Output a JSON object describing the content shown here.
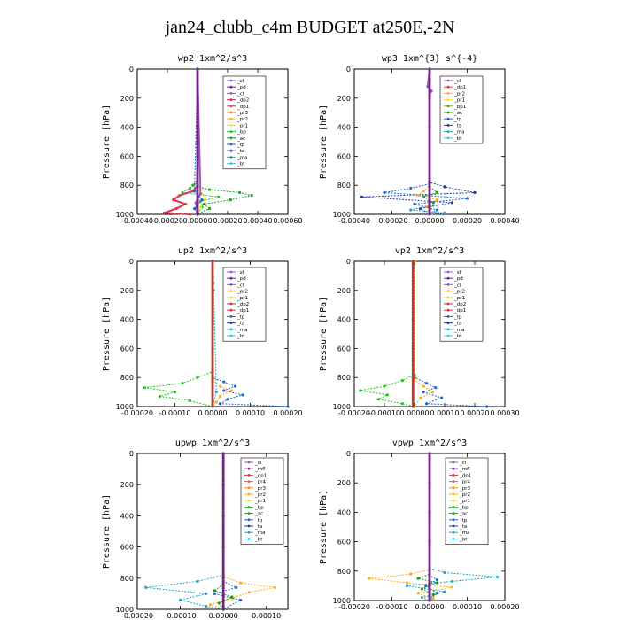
{
  "title": "jan24_clubb_c4m  BUDGET at250E,-2N",
  "colors": {
    "sf": "#8b5cf6",
    "pd": "#6b21a8",
    "cl": "#9b59b6",
    "dp2": "#d9264d",
    "dp1": "#e0334d",
    "pr3": "#ff8c1a",
    "pr2": "#ffb020",
    "pr1": "#f2e62b",
    "pr4": "#ff5a3c",
    "bp": "#22c922",
    "ac": "#1aa01a",
    "tp": "#1f66cc",
    "ta": "#1f3a99",
    "ma": "#23a6c9",
    "bt": "#35c8e8",
    "mfl": "#7a1f8c",
    "bp1": "#4caf20"
  },
  "chart_data": [
    {
      "type": "line",
      "title": "wp2  1xm^2/s^3",
      "ylabel": "Pressure [hPa]",
      "xlim": [
        -0.0004,
        0.0006
      ],
      "xticks": [
        "-0.00040",
        "-0.00020",
        "0.00000",
        "0.00020",
        "0.00040",
        "0.00060"
      ],
      "ylim": [
        1000,
        0
      ],
      "yticks": [
        "0",
        "200",
        "400",
        "600",
        "800",
        "1000"
      ],
      "legend": [
        "_sf",
        "_pd",
        "_cl",
        "_dp2",
        "_dp1",
        "_pr3",
        "_pr2",
        "_pr1",
        "_bp",
        "_ac",
        "_tp",
        "_ta",
        "_ma",
        "_bt"
      ],
      "legend_keys": [
        "sf",
        "pd",
        "cl",
        "dp2",
        "dp1",
        "pr3",
        "pr2",
        "pr1",
        "bp",
        "ac",
        "tp",
        "ta",
        "ma",
        "bt"
      ],
      "series": [
        {
          "key": "ac",
          "p": [
            0,
            760,
            800,
            830,
            850,
            870,
            900,
            930,
            960,
            1000
          ],
          "x": [
            0,
            0,
            -3e-05,
            8e-05,
            0.00028,
            0.00036,
            0.00022,
            4e-05,
            8e-05,
            0
          ]
        },
        {
          "key": "bp",
          "p": [
            0,
            780,
            820,
            850,
            880,
            910,
            950,
            1000
          ],
          "x": [
            0,
            0,
            -5e-05,
            -0.0001,
            0.00014,
            2e-05,
            3e-05,
            0
          ]
        },
        {
          "key": "dp1",
          "p": [
            0,
            800,
            840,
            870,
            900,
            930,
            960,
            990,
            1000
          ],
          "x": [
            0,
            0,
            -3e-05,
            -0.00012,
            -0.00016,
            -8e-05,
            -0.00014,
            -0.00022,
            -5e-05
          ]
        },
        {
          "key": "pr1",
          "p": [
            0,
            820,
            860,
            900,
            950,
            1000
          ],
          "x": [
            0,
            0,
            3e-05,
            5e-05,
            2e-05,
            0
          ]
        },
        {
          "key": "cl",
          "p": [
            0,
            860,
            920,
            1000
          ],
          "x": [
            0,
            2e-05,
            -1e-05,
            0
          ]
        },
        {
          "key": "tp",
          "p": [
            0,
            840,
            900,
            960,
            1000
          ],
          "x": [
            0,
            -2e-05,
            3e-05,
            -2e-05,
            0
          ]
        },
        {
          "key": "pd",
          "p": [
            0,
            200,
            400,
            600,
            800,
            900,
            1000
          ],
          "x": [
            0,
            0,
            0,
            0,
            0,
            0,
            0
          ]
        }
      ]
    },
    {
      "type": "line",
      "title": "wp3  1xm^{3} s^{-4}",
      "ylabel": "Pressure [hPa]",
      "xlim": [
        -0.0004,
        0.0004
      ],
      "xticks": [
        "-0.00040",
        "-0.00020",
        "0.00000",
        "0.00020",
        "0.00040"
      ],
      "ylim": [
        1000,
        0
      ],
      "yticks": [
        "0",
        "200",
        "400",
        "600",
        "800",
        "1000"
      ],
      "legend": [
        "_cl",
        "_dp1",
        "_pr2",
        "_pr1",
        "_bp1",
        "_ac",
        "_tp",
        "_ta",
        "_ma",
        "_bt"
      ],
      "legend_keys": [
        "cl",
        "dp1",
        "pr2",
        "pr1",
        "bp1",
        "ac",
        "tp",
        "ta",
        "ma",
        "bt"
      ],
      "series": [
        {
          "key": "ta",
          "p": [
            0,
            780,
            810,
            850,
            880,
            920,
            960,
            1000
          ],
          "x": [
            0,
            0,
            8e-05,
            0.00024,
            -0.00036,
            0.00012,
            -5e-05,
            0
          ]
        },
        {
          "key": "tp",
          "p": [
            0,
            790,
            820,
            850,
            890,
            930,
            970,
            1000
          ],
          "x": [
            0,
            0,
            -0.0001,
            -0.00024,
            0.0002,
            -8e-05,
            4e-05,
            0
          ]
        },
        {
          "key": "pr2",
          "p": [
            0,
            800,
            840,
            870,
            900,
            950,
            1000
          ],
          "x": [
            0,
            0,
            -3e-05,
            -6e-05,
            4e-05,
            -2e-05,
            0
          ]
        },
        {
          "key": "ac",
          "p": [
            0,
            810,
            850,
            880,
            920,
            1000
          ],
          "x": [
            0,
            0,
            4e-05,
            -3e-05,
            2e-05,
            0
          ]
        },
        {
          "key": "ma",
          "p": [
            0,
            940,
            970,
            990,
            1000
          ],
          "x": [
            0,
            0,
            -0.0001,
            8e-05,
            0
          ]
        },
        {
          "key": "cl",
          "p": [
            0,
            120,
            150,
            180,
            400,
            800,
            1000
          ],
          "x": [
            0,
            -1e-05,
            1e-05,
            0,
            0,
            0,
            0
          ]
        }
      ]
    },
    {
      "type": "line",
      "title": "up2  1xm^2/s^3",
      "ylabel": "Pressure [hPa]",
      "xlim": [
        -0.0002,
        0.0002
      ],
      "xticks": [
        "-0.00020",
        "-0.00010",
        "0.00000",
        "0.00010",
        "0.00020"
      ],
      "ylim": [
        1000,
        0
      ],
      "yticks": [
        "0",
        "200",
        "400",
        "600",
        "800",
        "1000"
      ],
      "legend": [
        "_sf",
        "_pd",
        "_cl",
        "_pr2",
        "_pr1",
        "_dp2",
        "_dp1",
        "_tp",
        "_ta",
        "_ma",
        "_bt"
      ],
      "legend_keys": [
        "sf",
        "pd",
        "cl",
        "pr2",
        "pr1",
        "dp2",
        "dp1",
        "tp",
        "ta",
        "ma",
        "bt"
      ],
      "series": [
        {
          "key": "bp",
          "p": [
            0,
            760,
            800,
            840,
            870,
            900,
            930,
            960,
            1000
          ],
          "x": [
            0,
            0,
            -4e-05,
            -8e-05,
            -0.00018,
            -0.0001,
            -0.00014,
            -6e-05,
            0
          ]
        },
        {
          "key": "tp",
          "p": [
            0,
            800,
            830,
            860,
            890,
            920,
            950,
            980,
            1000
          ],
          "x": [
            0,
            0,
            3e-05,
            6e-05,
            3e-05,
            8e-05,
            4e-05,
            2e-05,
            0.0002
          ]
        },
        {
          "key": "pr2",
          "p": [
            0,
            820,
            860,
            890,
            930,
            970,
            1000
          ],
          "x": [
            0,
            0,
            2e-05,
            5e-05,
            2e-05,
            1e-05,
            0
          ]
        },
        {
          "key": "ma",
          "p": [
            0,
            150,
            200,
            900,
            1000
          ],
          "x": [
            0,
            2e-06,
            3e-06,
            1e-05,
            0
          ]
        },
        {
          "key": "cl",
          "p": [
            0,
            200,
            400,
            600,
            800,
            1000
          ],
          "x": [
            0,
            0,
            0,
            0,
            0,
            0
          ]
        }
      ]
    },
    {
      "type": "line",
      "title": "vp2  1xm^2/s^3",
      "ylabel": "Pressure [hPa]",
      "xlim": [
        -0.0002,
        0.0003
      ],
      "xticks": [
        "-0.00020",
        "-0.00010",
        "0.00000",
        "0.00010",
        "0.00020",
        "0.00030"
      ],
      "ylim": [
        1000,
        0
      ],
      "yticks": [
        "0",
        "200",
        "400",
        "600",
        "800",
        "1000"
      ],
      "legend": [
        "_sf",
        "_pd",
        "_cl",
        "_pr2",
        "_pr1",
        "_dp2",
        "_dp1",
        "_tp",
        "_ta",
        "_ma",
        "_bt"
      ],
      "legend_keys": [
        "sf",
        "pd",
        "cl",
        "pr2",
        "pr1",
        "dp2",
        "dp1",
        "tp",
        "ta",
        "ma",
        "bt"
      ],
      "series": [
        {
          "key": "bp",
          "p": [
            0,
            780,
            820,
            860,
            890,
            920,
            950,
            980,
            1000
          ],
          "x": [
            0,
            0,
            -4e-05,
            -0.0001,
            -0.00018,
            -9e-05,
            -0.00012,
            -4e-05,
            0
          ]
        },
        {
          "key": "tp",
          "p": [
            0,
            800,
            840,
            870,
            900,
            940,
            980,
            1000
          ],
          "x": [
            0,
            0,
            4e-05,
            7e-05,
            3e-05,
            9e-05,
            4e-05,
            0.00024
          ]
        },
        {
          "key": "pr2",
          "p": [
            0,
            820,
            860,
            900,
            940,
            1000
          ],
          "x": [
            0,
            0,
            3e-05,
            6e-05,
            2e-05,
            0
          ]
        },
        {
          "key": "cl",
          "p": [
            0,
            200,
            400,
            600,
            800,
            1000
          ],
          "x": [
            -5e-06,
            -5e-06,
            -5e-06,
            -5e-06,
            -5e-06,
            -5e-06
          ]
        }
      ]
    },
    {
      "type": "line",
      "title": "upwp   1xm^2/s^3",
      "ylabel": "Pressure [hPa]",
      "xlim": [
        -0.0002,
        0.00015
      ],
      "xticks": [
        "-0.00020",
        "-0.00010",
        "0.00000",
        "0.00010"
      ],
      "ylim": [
        1000,
        0
      ],
      "yticks": [
        "0",
        "200",
        "400",
        "600",
        "800",
        "1000"
      ],
      "legend": [
        "_cl",
        "_mfl",
        "_dp1",
        "_pr4",
        "_pr3",
        "_pr2",
        "_pr1",
        "_bp",
        "_ac",
        "_tp",
        "_ta",
        "_ma",
        "_bt"
      ],
      "legend_keys": [
        "cl",
        "mfl",
        "dp1",
        "pr4",
        "pr3",
        "pr2",
        "pr1",
        "bp",
        "ac",
        "tp",
        "ta",
        "ma",
        "bt"
      ],
      "series": [
        {
          "key": "ma",
          "p": [
            0,
            780,
            820,
            860,
            900,
            940,
            980,
            1000
          ],
          "x": [
            0,
            0,
            -6e-05,
            -0.00018,
            -4e-05,
            -0.0001,
            -4e-05,
            0
          ]
        },
        {
          "key": "pr2",
          "p": [
            0,
            790,
            830,
            860,
            890,
            930,
            970,
            1000
          ],
          "x": [
            0,
            0,
            4e-05,
            0.00012,
            6e-05,
            2e-05,
            -3e-05,
            0
          ]
        },
        {
          "key": "tp",
          "p": [
            0,
            820,
            860,
            900,
            940,
            1000
          ],
          "x": [
            0,
            0,
            3e-05,
            -2e-05,
            4e-05,
            0
          ]
        },
        {
          "key": "ac",
          "p": [
            0,
            840,
            880,
            920,
            960,
            1000
          ],
          "x": [
            0,
            0,
            -2e-05,
            2e-05,
            -1e-05,
            0
          ]
        },
        {
          "key": "mfl",
          "p": [
            0,
            200,
            400,
            600,
            800,
            1000
          ],
          "x": [
            0,
            0,
            0,
            0,
            0,
            0
          ]
        }
      ]
    },
    {
      "type": "line",
      "title": "vpwp   1xm^2/s^3",
      "ylabel": "Pressure [hPa]",
      "xlim": [
        -0.0002,
        0.0002
      ],
      "xticks": [
        "-0.00020",
        "-0.00010",
        "0.00000",
        "0.00010",
        "0.00020"
      ],
      "ylim": [
        1000,
        0
      ],
      "yticks": [
        "0",
        "200",
        "400",
        "600",
        "800",
        "1000"
      ],
      "legend": [
        "_cl",
        "_mfl",
        "_dp1",
        "_pr4",
        "_pr3",
        "_pr2",
        "_pr1",
        "_bp",
        "_ac",
        "_tp",
        "_ta",
        "_ma",
        "_bt"
      ],
      "legend_keys": [
        "cl",
        "mfl",
        "dp1",
        "pr4",
        "pr3",
        "pr2",
        "pr1",
        "bp",
        "ac",
        "tp",
        "ta",
        "ma",
        "bt"
      ],
      "series": [
        {
          "key": "ma",
          "p": [
            0,
            780,
            810,
            840,
            870,
            900,
            940,
            980,
            1000
          ],
          "x": [
            0,
            0,
            4e-05,
            0.00018,
            6e-05,
            -6e-05,
            4e-05,
            -2e-05,
            0
          ]
        },
        {
          "key": "pr2",
          "p": [
            0,
            790,
            820,
            850,
            880,
            910,
            950,
            990,
            1000
          ],
          "x": [
            0,
            0,
            -5e-05,
            -0.00016,
            -6e-05,
            6e-05,
            -3e-05,
            1e-05,
            0
          ]
        },
        {
          "key": "ac",
          "p": [
            0,
            820,
            850,
            880,
            920,
            960,
            1000
          ],
          "x": [
            0,
            0,
            -3e-05,
            2e-05,
            -2e-05,
            1e-05,
            0
          ]
        },
        {
          "key": "tp",
          "p": [
            0,
            830,
            860,
            900,
            950,
            1000
          ],
          "x": [
            0,
            0,
            2e-05,
            -1e-05,
            2e-05,
            0
          ]
        },
        {
          "key": "mfl",
          "p": [
            0,
            200,
            400,
            600,
            800,
            1000
          ],
          "x": [
            0,
            0,
            0,
            0,
            0,
            0
          ]
        }
      ]
    }
  ]
}
